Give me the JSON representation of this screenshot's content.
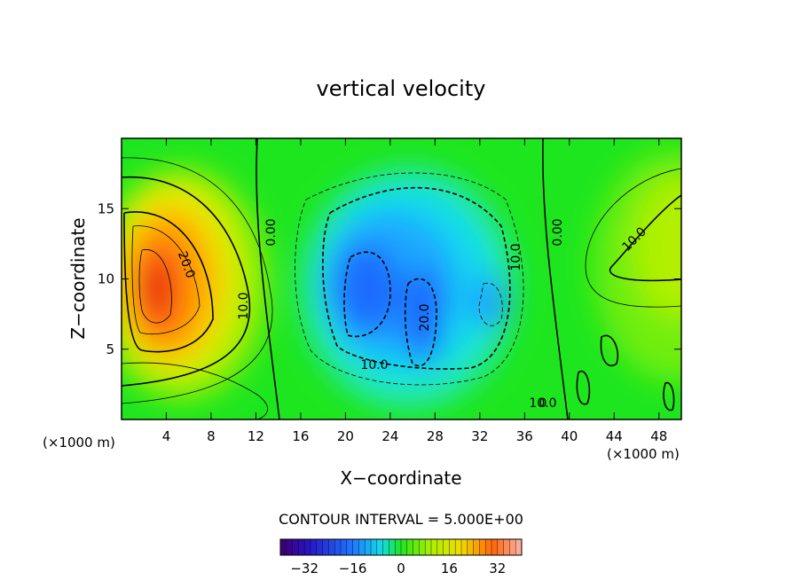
{
  "chart_data": {
    "type": "heatmap",
    "title": "vertical velocity",
    "xlabel": "X−coordinate",
    "ylabel": "Z−coordinate",
    "x_unit_left": "(×1000 m)",
    "x_unit_right": "(×1000 m)",
    "xlim": [
      0,
      50
    ],
    "ylim": [
      0,
      20
    ],
    "x_ticks": [
      4,
      8,
      12,
      16,
      20,
      24,
      28,
      32,
      36,
      40,
      44,
      48
    ],
    "x_tick_labels": [
      "4",
      "8",
      "12",
      "16",
      "20",
      "24",
      "28",
      "32",
      "36",
      "40",
      "44",
      "48"
    ],
    "y_ticks": [
      5,
      10,
      15
    ],
    "y_tick_labels": [
      "5",
      "10",
      "15"
    ],
    "field_centers": [
      {
        "x": 3,
        "z": 10,
        "value": 36
      },
      {
        "x": 5.5,
        "z": 8,
        "value": 28
      },
      {
        "x": 22,
        "z": 10,
        "value": -24
      },
      {
        "x": 26.5,
        "z": 7.5,
        "value": -22
      },
      {
        "x": 33,
        "z": 8.5,
        "value": -14
      },
      {
        "x": 50,
        "z": 12,
        "value": 14
      },
      {
        "x": 46,
        "z": 7,
        "value": 6
      }
    ],
    "contour_labels": [
      "20.0",
      "10.0",
      "0.00",
      "10.0",
      "10.0",
      "20.0",
      "10.0",
      "0.00",
      "10.0",
      "0"
    ],
    "contour_interval_text": "CONTOUR INTERVAL = 5.000E+00",
    "colorbar": {
      "min": -40,
      "max": 40,
      "tick_values": [
        -32,
        -16,
        0,
        16,
        32
      ],
      "tick_labels": [
        "−32",
        "−16",
        "0",
        "16",
        "32"
      ]
    },
    "colors": {
      "background_field": "#1ee61e",
      "positive_max": "#e82010",
      "negative_max": "#1e5aff",
      "contour_line": "#000000"
    }
  }
}
